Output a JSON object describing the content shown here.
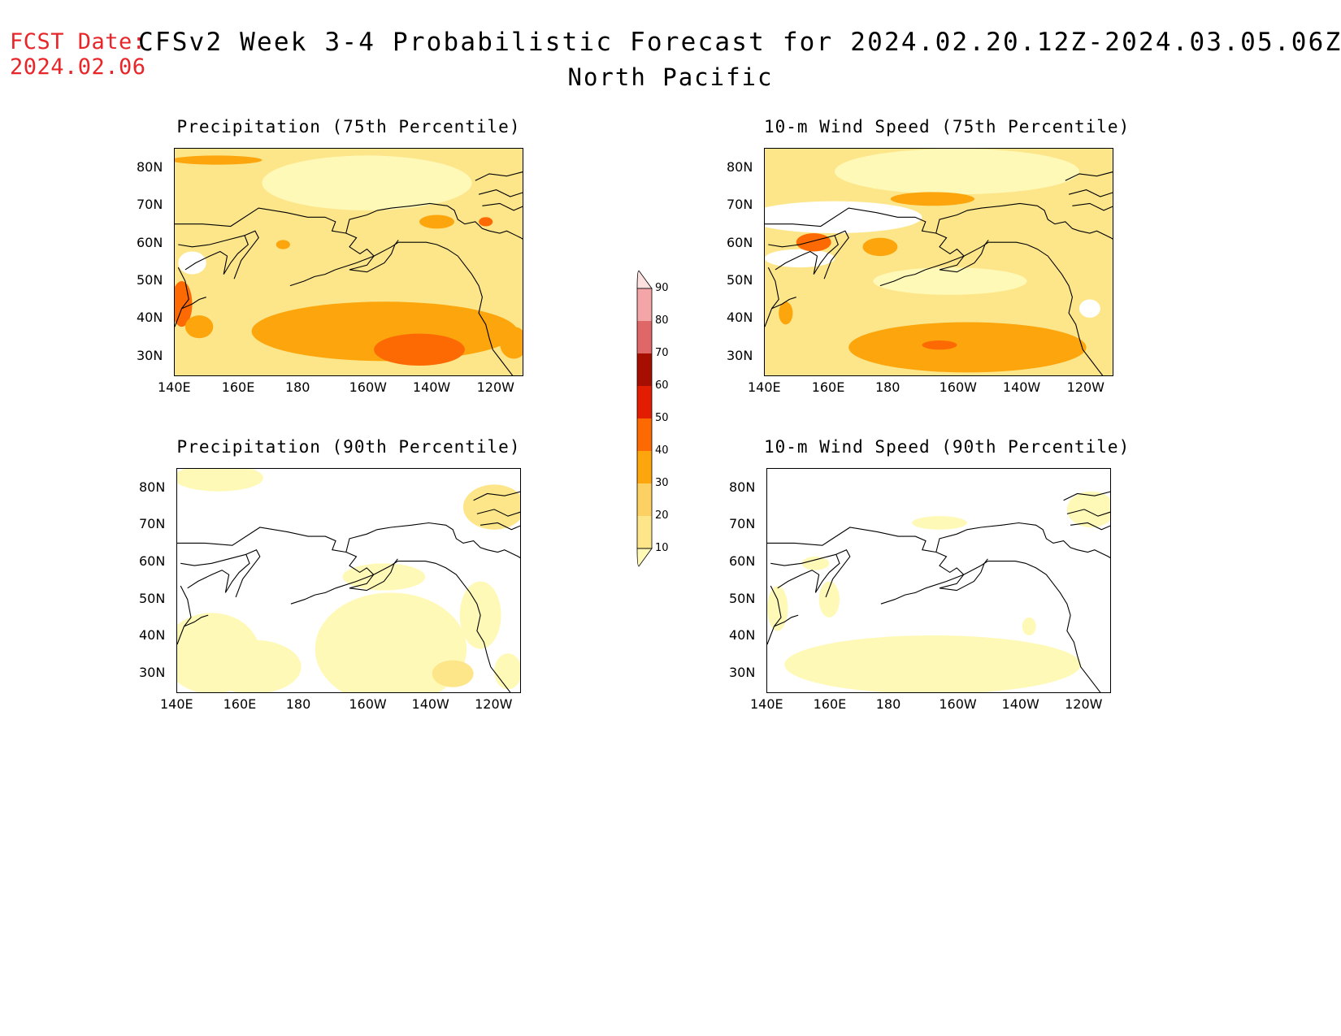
{
  "header": {
    "fcst_label": "FCST Date:",
    "fcst_date": "2024.02.06",
    "title": "CFSv2 Week 3-4 Probabilistic Forecast for 2024.02.20.12Z-2024.03.05.06Z",
    "subtitle": "North Pacific"
  },
  "axes": {
    "lat_labels": [
      "80N",
      "70N",
      "60N",
      "50N",
      "40N",
      "30N"
    ],
    "lon_labels": [
      "140E",
      "160E",
      "180",
      "160W",
      "140W",
      "120W"
    ]
  },
  "panels": [
    {
      "id": "precip-75",
      "title": "Precipitation (75th Percentile)",
      "intensity": "high"
    },
    {
      "id": "wind-75",
      "title": "10-m Wind Speed (75th Percentile)",
      "intensity": "high-wind"
    },
    {
      "id": "precip-90",
      "title": "Precipitation (90th Percentile)",
      "intensity": "low"
    },
    {
      "id": "wind-90",
      "title": "10-m Wind Speed (90th Percentile)",
      "intensity": "low-wind"
    }
  ],
  "colorbar": {
    "levels": [
      "10",
      "20",
      "30",
      "40",
      "50",
      "60",
      "70",
      "80",
      "90"
    ],
    "colors": [
      "#fff9b8",
      "#fde68a",
      "#fdd063",
      "#fca50d",
      "#fd6a03",
      "#e21d02",
      "#a50e00",
      "#e06767",
      "#f4a5a7",
      "#fde0e0"
    ]
  }
}
